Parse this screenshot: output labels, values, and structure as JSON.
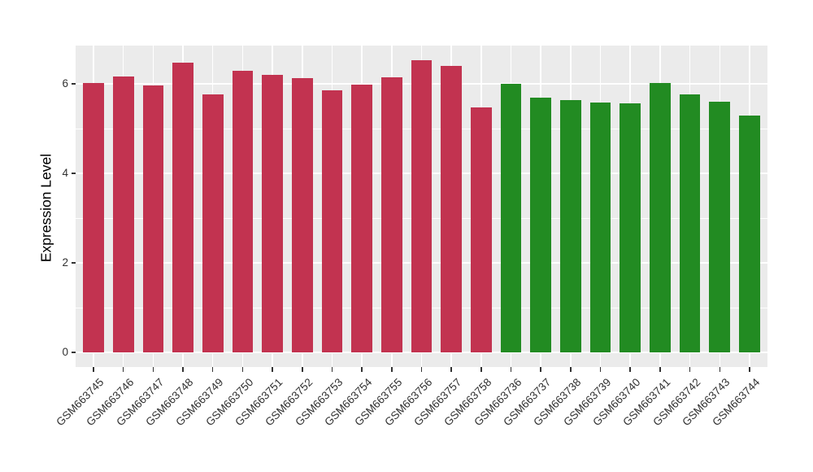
{
  "chart_data": {
    "type": "bar",
    "title": "",
    "xlabel": "",
    "ylabel": "Expression Level",
    "ylim": [
      -0.33,
      6.85
    ],
    "yticks": [
      0,
      2,
      4,
      6
    ],
    "minor_gridlines": [
      1,
      3,
      5
    ],
    "grid": true,
    "legend_position": "none",
    "panel_background": "#EBEBEB",
    "gridline_color": "#FFFFFF",
    "categories": [
      "GSM663745",
      "GSM663746",
      "GSM663747",
      "GSM663748",
      "GSM663749",
      "GSM663750",
      "GSM663751",
      "GSM663752",
      "GSM663753",
      "GSM663754",
      "GSM663755",
      "GSM663756",
      "GSM663757",
      "GSM663758",
      "GSM663736",
      "GSM663737",
      "GSM663738",
      "GSM663739",
      "GSM663740",
      "GSM663741",
      "GSM663742",
      "GSM663743",
      "GSM663744"
    ],
    "values": [
      6.02,
      6.16,
      5.97,
      6.48,
      5.76,
      6.3,
      6.2,
      6.13,
      5.86,
      5.99,
      6.14,
      6.52,
      6.4,
      5.48,
      6.0,
      5.7,
      5.64,
      5.58,
      5.57,
      6.02,
      5.77,
      5.6,
      5.3
    ],
    "bar_groups": [
      "red",
      "red",
      "red",
      "red",
      "red",
      "red",
      "red",
      "red",
      "red",
      "red",
      "red",
      "red",
      "red",
      "red",
      "green",
      "green",
      "green",
      "green",
      "green",
      "green",
      "green",
      "green",
      "green"
    ],
    "group_colors": {
      "red": "#C23350",
      "green": "#228B22"
    }
  }
}
